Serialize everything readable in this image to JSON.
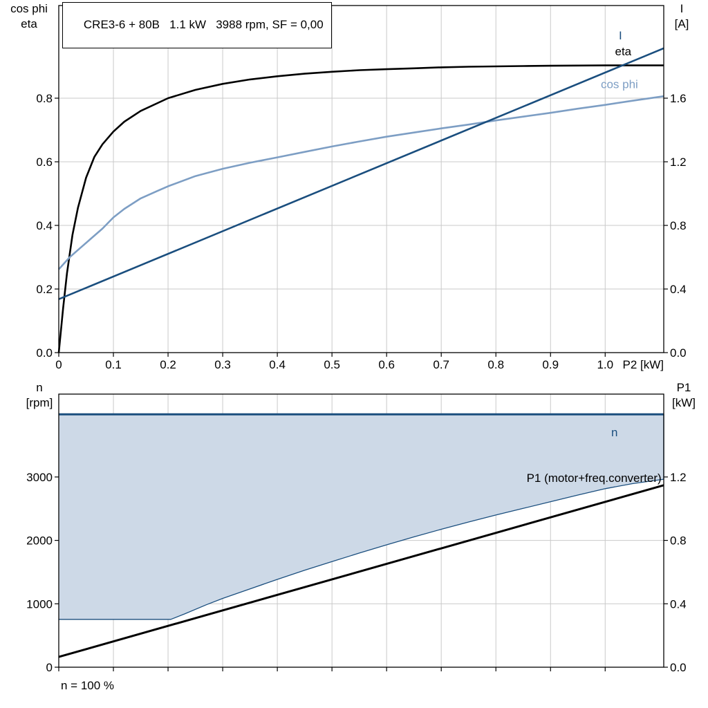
{
  "page": {
    "background": "#ffffff"
  },
  "chart_data": [
    {
      "type": "line",
      "title": "CRE3-6 + 80B   1.1 kW   3988 rpm, SF = 0,00",
      "xlabel": "P2 [kW]",
      "ylabel_left": [
        "cos phi",
        "eta"
      ],
      "ylabel_right": [
        "I",
        "[A]"
      ],
      "xlim": [
        0,
        1.1072
      ],
      "ylim": [
        0,
        1.0913
      ],
      "rlim": [
        0,
        2.1826
      ],
      "grid": "#c9c9c9",
      "legend_position": "inline-labels",
      "xticks": [
        {
          "v": 0,
          "label": "0"
        },
        {
          "v": 0.1,
          "label": "0.1"
        },
        {
          "v": 0.2,
          "label": "0.2"
        },
        {
          "v": 0.3,
          "label": "0.3"
        },
        {
          "v": 0.4,
          "label": "0.4"
        },
        {
          "v": 0.5,
          "label": "0.5"
        },
        {
          "v": 0.6,
          "label": "0.6"
        },
        {
          "v": 0.7,
          "label": "0.7"
        },
        {
          "v": 0.8,
          "label": "0.8"
        },
        {
          "v": 0.9,
          "label": "0.9"
        },
        {
          "v": 1.0,
          "label": "1.0"
        }
      ],
      "yticks_left": [
        {
          "v": 0,
          "label": "0.0"
        },
        {
          "v": 0.2,
          "label": "0.2"
        },
        {
          "v": 0.4,
          "label": "0.4"
        },
        {
          "v": 0.6,
          "label": "0.6"
        },
        {
          "v": 0.8,
          "label": "0.8"
        }
      ],
      "yticks_right": [
        {
          "v": 0,
          "label": "0.0"
        },
        {
          "v": 0.4,
          "label": "0.4"
        },
        {
          "v": 0.8,
          "label": "0.8"
        },
        {
          "v": 1.2,
          "label": "1.2"
        },
        {
          "v": 1.6,
          "label": "1.6"
        }
      ],
      "series": [
        {
          "name": "eta",
          "color": "#000000",
          "width": 2.6,
          "axis": "left",
          "points": [
            [
              0,
              0
            ],
            [
              0.008,
              0.14
            ],
            [
              0.015,
              0.25
            ],
            [
              0.025,
              0.37
            ],
            [
              0.035,
              0.455
            ],
            [
              0.05,
              0.55
            ],
            [
              0.065,
              0.615
            ],
            [
              0.08,
              0.655
            ],
            [
              0.1,
              0.695
            ],
            [
              0.12,
              0.726
            ],
            [
              0.15,
              0.76
            ],
            [
              0.2,
              0.8
            ],
            [
              0.25,
              0.826
            ],
            [
              0.3,
              0.845
            ],
            [
              0.35,
              0.859
            ],
            [
              0.4,
              0.869
            ],
            [
              0.45,
              0.877
            ],
            [
              0.5,
              0.883
            ],
            [
              0.55,
              0.888
            ],
            [
              0.6,
              0.891
            ],
            [
              0.65,
              0.894
            ],
            [
              0.7,
              0.897
            ],
            [
              0.75,
              0.899
            ],
            [
              0.8,
              0.9
            ],
            [
              0.85,
              0.901
            ],
            [
              0.9,
              0.902
            ],
            [
              1.0,
              0.903
            ],
            [
              1.1072,
              0.903
            ]
          ]
        },
        {
          "name": "cos-phi",
          "color": "#7d9ec4",
          "width": 2.6,
          "axis": "left",
          "points": [
            [
              0,
              0.262
            ],
            [
              0.02,
              0.3
            ],
            [
              0.04,
              0.33
            ],
            [
              0.06,
              0.36
            ],
            [
              0.08,
              0.39
            ],
            [
              0.1,
              0.425
            ],
            [
              0.12,
              0.452
            ],
            [
              0.15,
              0.485
            ],
            [
              0.18,
              0.508
            ],
            [
              0.2,
              0.523
            ],
            [
              0.25,
              0.555
            ],
            [
              0.3,
              0.578
            ],
            [
              0.35,
              0.597
            ],
            [
              0.4,
              0.614
            ],
            [
              0.45,
              0.631
            ],
            [
              0.5,
              0.648
            ],
            [
              0.55,
              0.664
            ],
            [
              0.6,
              0.679
            ],
            [
              0.65,
              0.692
            ],
            [
              0.7,
              0.705
            ],
            [
              0.75,
              0.717
            ],
            [
              0.8,
              0.73
            ],
            [
              0.85,
              0.742
            ],
            [
              0.9,
              0.754
            ],
            [
              0.95,
              0.767
            ],
            [
              1.0,
              0.779
            ],
            [
              1.05,
              0.792
            ],
            [
              1.1072,
              0.806
            ]
          ]
        },
        {
          "name": "I",
          "color": "#1a4e7e",
          "width": 2.6,
          "axis": "right",
          "points": [
            [
              0,
              0.336
            ],
            [
              1.1072,
              1.914
            ]
          ]
        }
      ],
      "annotations": [
        {
          "text": "I",
          "x": 1.025,
          "y": 1.97,
          "axis": "right",
          "color": "#1a4e7e",
          "anchor": "start"
        },
        {
          "text": "eta",
          "x": 1.018,
          "y": 0.935,
          "axis": "left",
          "color": "#000000",
          "anchor": "start"
        },
        {
          "text": "cos phi",
          "x": 0.992,
          "y": 0.832,
          "axis": "left",
          "color": "#7d9ec4",
          "anchor": "start"
        }
      ]
    },
    {
      "type": "line",
      "title": "",
      "xlabel": "",
      "footnote": "n = 100 %",
      "ylabel_left": [
        "n",
        "[rpm]"
      ],
      "ylabel_right": [
        "P1",
        "[kW]"
      ],
      "xlim": [
        0,
        1.1072
      ],
      "ylim": [
        0,
        4307
      ],
      "rlim": [
        0,
        1.7227
      ],
      "grid": "#c9c9c9",
      "band_fill_color": "#cdd9e7",
      "xticks": [
        {
          "v": 0,
          "label": ""
        },
        {
          "v": 0.1,
          "label": ""
        },
        {
          "v": 0.2,
          "label": ""
        },
        {
          "v": 0.3,
          "label": ""
        },
        {
          "v": 0.4,
          "label": ""
        },
        {
          "v": 0.5,
          "label": ""
        },
        {
          "v": 0.6,
          "label": ""
        },
        {
          "v": 0.7,
          "label": ""
        },
        {
          "v": 0.8,
          "label": ""
        },
        {
          "v": 0.9,
          "label": ""
        },
        {
          "v": 1.0,
          "label": ""
        }
      ],
      "yticks_left": [
        {
          "v": 0,
          "label": "0"
        },
        {
          "v": 1000,
          "label": "1000"
        },
        {
          "v": 2000,
          "label": "2000"
        },
        {
          "v": 3000,
          "label": "3000"
        }
      ],
      "yticks_right": [
        {
          "v": 0,
          "label": "0.0"
        },
        {
          "v": 0.4,
          "label": "0.4"
        },
        {
          "v": 0.8,
          "label": "0.8"
        },
        {
          "v": 1.2,
          "label": "1.2"
        }
      ],
      "series": [
        {
          "name": "speed-band",
          "color": "none",
          "width": 0,
          "axis": "left",
          "fill": "#cdd9e7",
          "closed": true,
          "points": [
            [
              0,
              755
            ],
            [
              0.205,
              755
            ],
            [
              0.23,
              840
            ],
            [
              0.27,
              985
            ],
            [
              0.3,
              1085
            ],
            [
              0.35,
              1235
            ],
            [
              0.4,
              1385
            ],
            [
              0.45,
              1530
            ],
            [
              0.5,
              1665
            ],
            [
              0.55,
              1800
            ],
            [
              0.6,
              1930
            ],
            [
              0.65,
              2055
            ],
            [
              0.7,
              2175
            ],
            [
              0.75,
              2290
            ],
            [
              0.8,
              2400
            ],
            [
              0.85,
              2505
            ],
            [
              0.9,
              2610
            ],
            [
              0.95,
              2715
            ],
            [
              1.0,
              2815
            ],
            [
              1.05,
              2895
            ],
            [
              1.1072,
              2965
            ],
            [
              1.1072,
              3988
            ],
            [
              0,
              3988
            ]
          ]
        },
        {
          "name": "P1",
          "color": "#000000",
          "width": 3,
          "axis": "right",
          "points": [
            [
              0,
              0.065
            ],
            [
              1.1072,
              1.148
            ]
          ]
        },
        {
          "name": "n-min",
          "color": "#1a4e7e",
          "width": 1.3,
          "axis": "left",
          "points": [
            [
              0,
              755
            ],
            [
              0.205,
              755
            ],
            [
              0.23,
              840
            ],
            [
              0.27,
              985
            ],
            [
              0.3,
              1085
            ],
            [
              0.35,
              1235
            ],
            [
              0.4,
              1385
            ],
            [
              0.45,
              1530
            ],
            [
              0.5,
              1665
            ],
            [
              0.55,
              1800
            ],
            [
              0.6,
              1930
            ],
            [
              0.65,
              2055
            ],
            [
              0.7,
              2175
            ],
            [
              0.75,
              2290
            ],
            [
              0.8,
              2400
            ],
            [
              0.85,
              2505
            ],
            [
              0.9,
              2610
            ],
            [
              0.95,
              2715
            ],
            [
              1.0,
              2815
            ],
            [
              1.05,
              2895
            ],
            [
              1.1072,
              2965
            ],
            [
              1.1072,
              3988
            ]
          ]
        },
        {
          "name": "n",
          "color": "#1a4e7e",
          "width": 3,
          "axis": "left",
          "points": [
            [
              0,
              3988
            ],
            [
              1.1072,
              3988
            ]
          ]
        }
      ],
      "annotations": [
        {
          "text": "n",
          "x": 1.011,
          "y": 3640,
          "axis": "left",
          "color": "#1a4e7e",
          "anchor": "start"
        },
        {
          "text": "P1 (motor+freq.converter)",
          "x": 1.103,
          "y": 2920,
          "axis": "left",
          "color": "#000000",
          "anchor": "end"
        }
      ]
    }
  ]
}
